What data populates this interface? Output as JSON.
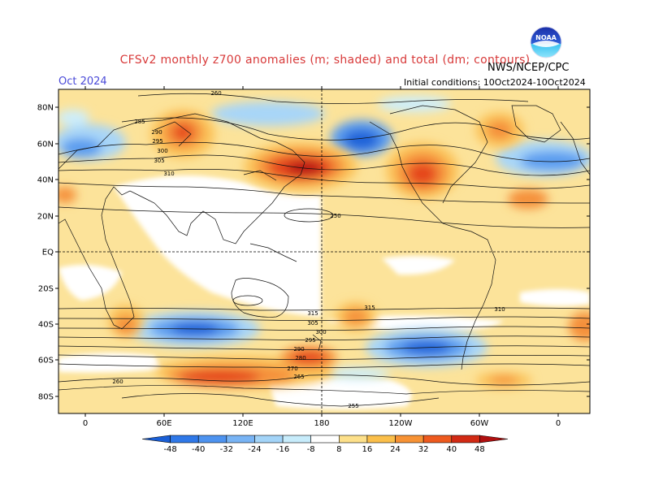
{
  "header": {
    "title": "CFSv2 monthly z700 anomalies (m; shaded) and total (dm; contours)",
    "month": "Oct 2024",
    "agency": "NWS/NCEP/CPC",
    "initial_conditions": "Initial conditions: 10Oct2024-10Oct2024",
    "logo_text": "NOAA"
  },
  "map": {
    "lat_ticks": [
      "80N",
      "60N",
      "40N",
      "20N",
      "EQ",
      "20S",
      "40S",
      "60S",
      "80S"
    ],
    "lon_ticks": [
      "0",
      "60E",
      "120E",
      "180",
      "120W",
      "60W",
      "0"
    ]
  },
  "contour_labels": [
    "260",
    "285",
    "290",
    "295",
    "300",
    "305",
    "310",
    "315",
    "305",
    "300",
    "295",
    "290",
    "280",
    "270",
    "265",
    "260",
    "255",
    "250",
    "315",
    "310"
  ],
  "colorbar": {
    "labels": [
      "-48",
      "-40",
      "-32",
      "-24",
      "-16",
      "-8",
      "8",
      "16",
      "24",
      "32",
      "40",
      "48"
    ],
    "colors": [
      "#1a5fd6",
      "#2f78e8",
      "#4d93f0",
      "#78b4f5",
      "#a3d4f8",
      "#c7ecfb",
      "#ffffff",
      "#fde08a",
      "#fbbf4a",
      "#f79234",
      "#ee5a1e",
      "#d22a14",
      "#b01010"
    ]
  },
  "anomaly_colors": {
    "neg_strong": "#1f62d8",
    "neg_mid": "#5a9cef",
    "neg_weak": "#a8d6f8",
    "neg_light": "#cdeefb",
    "pos_light": "#fce39a",
    "pos_weak": "#fbc35a",
    "pos_mid": "#f5903a",
    "pos_strong": "#e5461c",
    "pos_max": "#b81612"
  }
}
